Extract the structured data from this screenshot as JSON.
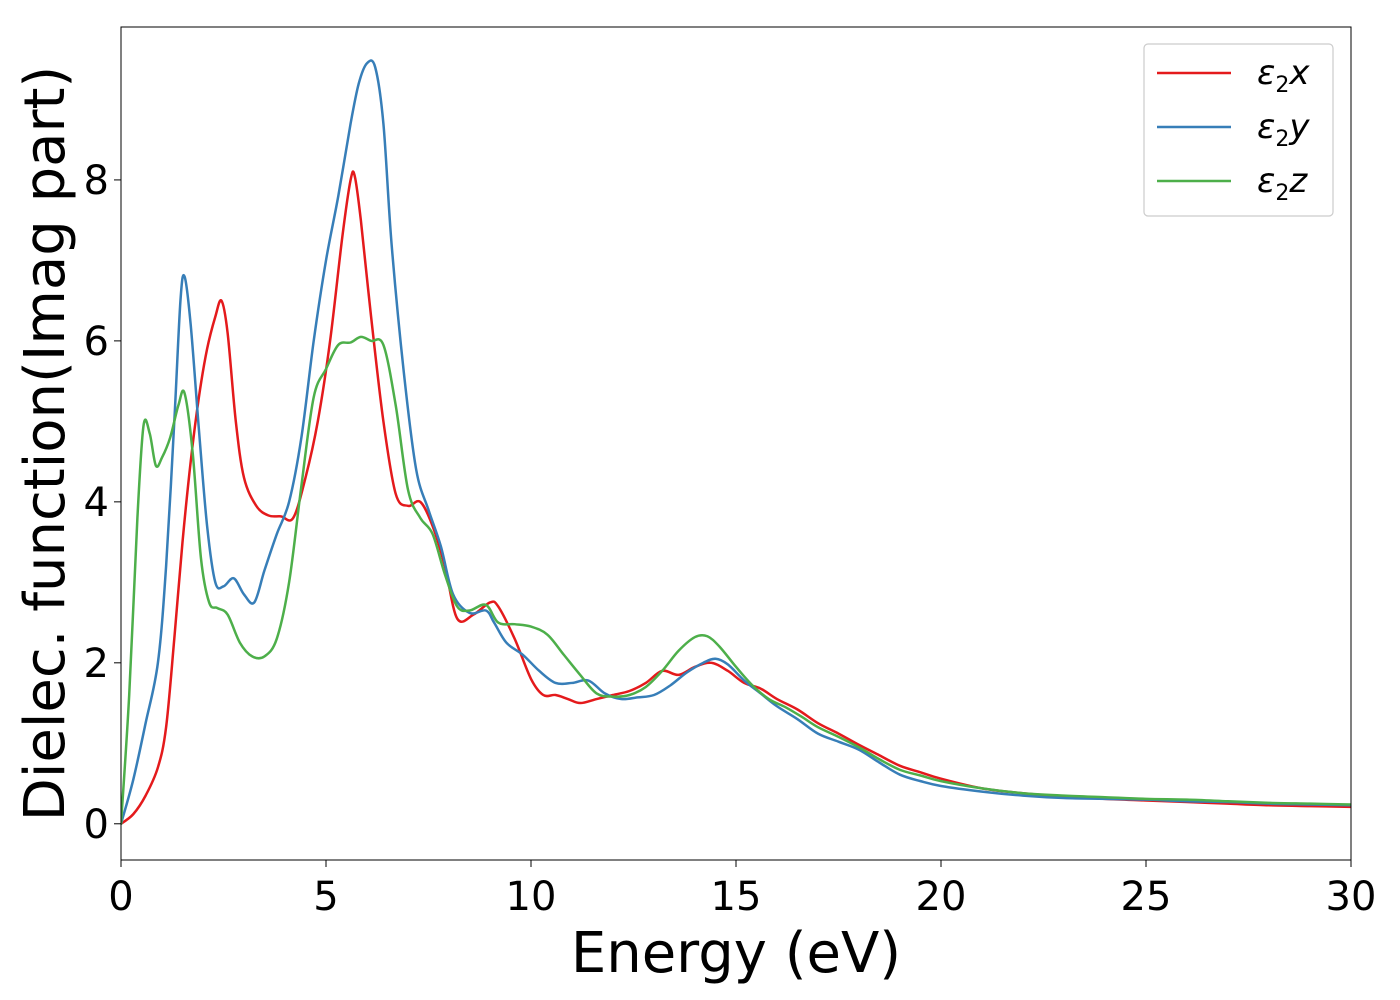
{
  "chart_data": {
    "type": "line",
    "title": "",
    "xlabel": "Energy (eV)",
    "ylabel": "Dielec. function(Imag part)",
    "xlim": [
      0,
      30
    ],
    "ylim": [
      -0.45,
      9.9
    ],
    "xticks": [
      0,
      5,
      10,
      15,
      20,
      25,
      30
    ],
    "yticks": [
      0,
      2,
      4,
      6,
      8
    ],
    "xtick_labels": [
      "0",
      "5",
      "10",
      "15",
      "20",
      "25",
      "30"
    ],
    "ytick_labels": [
      "0",
      "2",
      "4",
      "6",
      "8"
    ],
    "grid": false,
    "legend_position": "top-right",
    "series": [
      {
        "name": "ε₂x",
        "legend": {
          "base": "ε",
          "sub": "2",
          "tail": "x"
        },
        "color": "#e41a1c",
        "x": [
          0,
          0.3,
          0.6,
          0.9,
          1.1,
          1.3,
          1.5,
          1.7,
          1.9,
          2.1,
          2.3,
          2.45,
          2.6,
          2.8,
          3.0,
          3.3,
          3.6,
          3.9,
          4.2,
          4.5,
          4.8,
          5.1,
          5.4,
          5.6,
          5.7,
          5.85,
          6.1,
          6.4,
          6.7,
          7.0,
          7.3,
          7.6,
          7.9,
          8.2,
          8.6,
          9.0,
          9.2,
          9.6,
          10.0,
          10.3,
          10.6,
          10.9,
          11.2,
          11.6,
          12.0,
          12.4,
          12.8,
          13.2,
          13.6,
          14.0,
          14.4,
          14.8,
          15.2,
          15.6,
          16.0,
          16.5,
          17.0,
          17.5,
          18.0,
          18.5,
          19.0,
          19.5,
          20.0,
          21.0,
          22.0,
          23.0,
          24.0,
          25.0,
          26.0,
          27.0,
          28.0,
          29.0,
          30.0
        ],
        "values": [
          0.0,
          0.12,
          0.35,
          0.7,
          1.2,
          2.3,
          3.5,
          4.5,
          5.3,
          5.9,
          6.3,
          6.5,
          6.1,
          5.0,
          4.3,
          3.95,
          3.83,
          3.82,
          3.8,
          4.3,
          5.0,
          6.0,
          7.3,
          8.0,
          8.05,
          7.5,
          6.3,
          5.0,
          4.1,
          3.95,
          4.0,
          3.7,
          3.2,
          2.55,
          2.6,
          2.75,
          2.7,
          2.3,
          1.8,
          1.6,
          1.6,
          1.55,
          1.5,
          1.55,
          1.6,
          1.65,
          1.75,
          1.9,
          1.85,
          1.95,
          2.0,
          1.9,
          1.75,
          1.68,
          1.55,
          1.42,
          1.25,
          1.12,
          0.98,
          0.85,
          0.72,
          0.64,
          0.56,
          0.44,
          0.38,
          0.34,
          0.31,
          0.29,
          0.27,
          0.25,
          0.23,
          0.22,
          0.21
        ]
      },
      {
        "name": "ε₂y",
        "legend": {
          "base": "ε",
          "sub": "2",
          "tail": "y"
        },
        "color": "#377eb8",
        "x": [
          0,
          0.3,
          0.6,
          0.9,
          1.1,
          1.3,
          1.45,
          1.55,
          1.7,
          1.9,
          2.1,
          2.3,
          2.5,
          2.75,
          3.0,
          3.25,
          3.5,
          3.8,
          4.1,
          4.4,
          4.7,
          5.0,
          5.3,
          5.6,
          5.8,
          6.0,
          6.2,
          6.4,
          6.6,
          6.9,
          7.2,
          7.5,
          7.8,
          8.1,
          8.5,
          8.9,
          9.1,
          9.4,
          9.8,
          10.2,
          10.6,
          11.0,
          11.4,
          11.8,
          12.2,
          12.6,
          13.0,
          13.4,
          13.8,
          14.2,
          14.5,
          14.8,
          15.2,
          15.6,
          16.0,
          16.5,
          17.0,
          17.5,
          18.0,
          18.5,
          19.0,
          19.5,
          20.0,
          21.0,
          22.0,
          23.0,
          24.0,
          25.0,
          26.0,
          27.0,
          28.0,
          29.0,
          30.0
        ],
        "values": [
          0.0,
          0.55,
          1.25,
          2.0,
          3.2,
          5.0,
          6.5,
          6.8,
          6.2,
          4.9,
          3.7,
          3.0,
          2.95,
          3.05,
          2.85,
          2.75,
          3.15,
          3.6,
          4.0,
          4.8,
          6.0,
          7.0,
          7.8,
          8.7,
          9.2,
          9.45,
          9.4,
          8.7,
          7.2,
          5.6,
          4.4,
          3.9,
          3.45,
          2.85,
          2.62,
          2.65,
          2.5,
          2.25,
          2.1,
          1.9,
          1.75,
          1.75,
          1.78,
          1.62,
          1.55,
          1.57,
          1.6,
          1.72,
          1.88,
          2.0,
          2.05,
          1.98,
          1.78,
          1.62,
          1.46,
          1.3,
          1.12,
          1.02,
          0.92,
          0.76,
          0.61,
          0.53,
          0.47,
          0.4,
          0.35,
          0.32,
          0.31,
          0.3,
          0.28,
          0.27,
          0.25,
          0.24,
          0.23
        ]
      },
      {
        "name": "ε₂z",
        "legend": {
          "base": "ε",
          "sub": "2",
          "tail": "z"
        },
        "color": "#4daf4a",
        "x": [
          0,
          0.2,
          0.4,
          0.55,
          0.7,
          0.85,
          1.0,
          1.2,
          1.4,
          1.55,
          1.75,
          1.95,
          2.15,
          2.35,
          2.6,
          2.9,
          3.2,
          3.5,
          3.8,
          4.1,
          4.4,
          4.7,
          5.0,
          5.3,
          5.6,
          5.85,
          6.1,
          6.4,
          6.7,
          7.0,
          7.3,
          7.6,
          7.9,
          8.2,
          8.5,
          8.9,
          9.2,
          9.6,
          10.0,
          10.4,
          10.8,
          11.2,
          11.6,
          12.0,
          12.4,
          12.8,
          13.2,
          13.6,
          14.0,
          14.3,
          14.6,
          15.0,
          15.4,
          15.8,
          16.2,
          16.6,
          17.0,
          17.5,
          18.0,
          18.5,
          19.0,
          19.5,
          20.0,
          21.0,
          22.0,
          23.0,
          24.0,
          25.0,
          26.0,
          27.0,
          28.0,
          29.0,
          30.0
        ],
        "values": [
          0.0,
          1.6,
          3.8,
          4.95,
          4.85,
          4.45,
          4.55,
          4.8,
          5.2,
          5.35,
          4.6,
          3.3,
          2.75,
          2.68,
          2.6,
          2.25,
          2.08,
          2.08,
          2.3,
          3.0,
          4.2,
          5.3,
          5.65,
          5.95,
          5.98,
          6.05,
          6.0,
          5.95,
          5.2,
          4.15,
          3.8,
          3.6,
          3.1,
          2.7,
          2.65,
          2.72,
          2.5,
          2.48,
          2.45,
          2.35,
          2.1,
          1.85,
          1.62,
          1.58,
          1.6,
          1.7,
          1.9,
          2.15,
          2.32,
          2.33,
          2.2,
          1.95,
          1.72,
          1.55,
          1.45,
          1.33,
          1.2,
          1.08,
          0.95,
          0.8,
          0.67,
          0.6,
          0.53,
          0.44,
          0.38,
          0.35,
          0.33,
          0.31,
          0.3,
          0.28,
          0.26,
          0.25,
          0.24
        ]
      }
    ]
  }
}
